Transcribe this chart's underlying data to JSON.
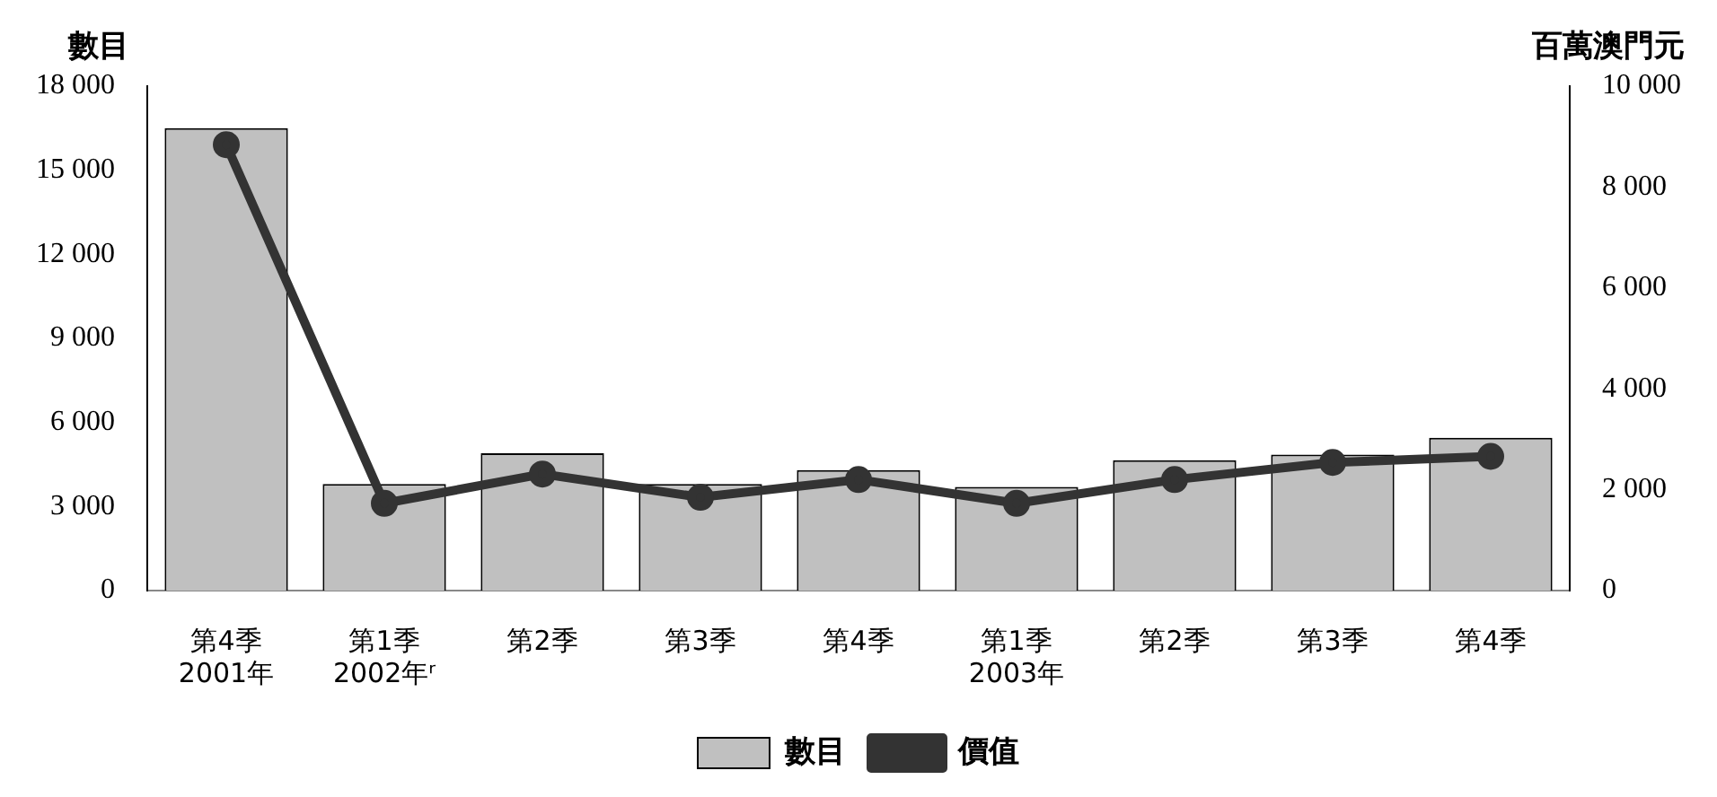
{
  "chart_data": {
    "type": "bar",
    "ylabel": "數目",
    "y2label": "百萬澳門元",
    "categories": [
      [
        "第4季",
        "2001年"
      ],
      [
        "第1季",
        "2002年ʳ"
      ],
      "第2季",
      "第3季",
      "第4季",
      [
        "第1季",
        "2003年"
      ],
      "第2季",
      "第3季",
      "第4季"
    ],
    "series": [
      {
        "name": "數目",
        "color": "#c0c0c0",
        "values": [
          16500,
          3800,
          4900,
          3800,
          4300,
          3700,
          4650,
          4850,
          5450
        ]
      },
      {
        "name": "價值",
        "type": "line",
        "axis": "y2",
        "color": "#333333",
        "values": [
          8840,
          1730,
          2310,
          1850,
          2200,
          1730,
          2200,
          2540,
          2660
        ]
      }
    ],
    "ylim": [
      0,
      18000
    ],
    "yticks": [
      0,
      {
        "value": 3000,
        "label": "3 000"
      },
      {
        "value": 6000,
        "label": "6 000"
      },
      {
        "value": 9000,
        "label": "9 000"
      },
      {
        "value": 12000,
        "label": "12 000"
      },
      {
        "value": 15000,
        "label": "15 000"
      },
      {
        "value": 18000,
        "label": "18 000"
      }
    ],
    "y2lim": [
      0,
      10000
    ],
    "y2ticks": [
      0,
      {
        "value": 2000,
        "label": "2 000"
      },
      {
        "value": 4000,
        "label": "4 000"
      },
      {
        "value": 6000,
        "label": "6 000"
      },
      {
        "value": 8000,
        "label": "8 000"
      },
      {
        "value": 10000,
        "label": "10 000"
      }
    ],
    "grid": false,
    "legend": "bottom",
    "marker": "circle",
    "line_style": "solid"
  }
}
